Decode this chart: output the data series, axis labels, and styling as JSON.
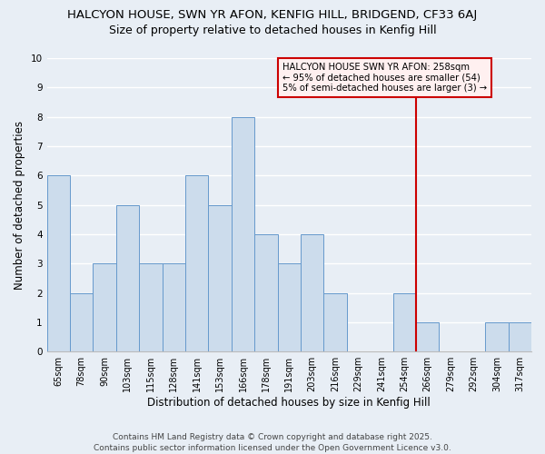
{
  "title1": "HALCYON HOUSE, SWN YR AFON, KENFIG HILL, BRIDGEND, CF33 6AJ",
  "title2": "Size of property relative to detached houses in Kenfig Hill",
  "categories": [
    "65sqm",
    "78sqm",
    "90sqm",
    "103sqm",
    "115sqm",
    "128sqm",
    "141sqm",
    "153sqm",
    "166sqm",
    "178sqm",
    "191sqm",
    "203sqm",
    "216sqm",
    "229sqm",
    "241sqm",
    "254sqm",
    "266sqm",
    "279sqm",
    "292sqm",
    "304sqm",
    "317sqm"
  ],
  "values": [
    6,
    2,
    3,
    5,
    3,
    3,
    6,
    5,
    8,
    4,
    3,
    4,
    2,
    0,
    0,
    2,
    1,
    0,
    0,
    1,
    1
  ],
  "bar_color": "#ccdcec",
  "bar_edge_color": "#6699cc",
  "ylabel": "Number of detached properties",
  "xlabel": "Distribution of detached houses by size in Kenfig Hill",
  "ylim": [
    0,
    10
  ],
  "yticks": [
    0,
    1,
    2,
    3,
    4,
    5,
    6,
    7,
    8,
    9,
    10
  ],
  "vline_x_index": 15.5,
  "vline_color": "#cc0000",
  "annotation_text": "HALCYON HOUSE SWN YR AFON: 258sqm\n← 95% of detached houses are smaller (54)\n5% of semi-detached houses are larger (3) →",
  "annotation_box_facecolor": "#fff0f0",
  "annotation_box_edgecolor": "#cc0000",
  "footer": "Contains HM Land Registry data © Crown copyright and database right 2025.\nContains public sector information licensed under the Open Government Licence v3.0.",
  "bg_color": "#e8eef5",
  "grid_color": "#ffffff",
  "title1_fontsize": 9.5,
  "title2_fontsize": 9,
  "ylabel_fontsize": 8.5,
  "xlabel_fontsize": 8.5,
  "tick_fontsize": 7,
  "footer_fontsize": 6.5
}
